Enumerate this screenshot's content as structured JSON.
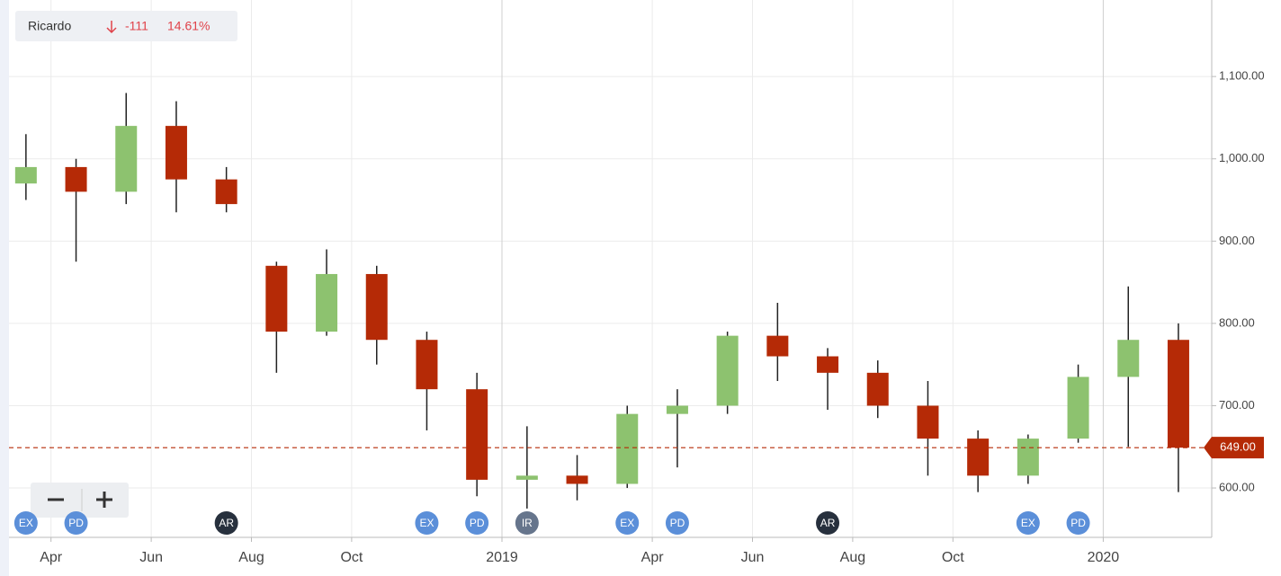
{
  "chart_data": {
    "type": "candlestick",
    "legend": {
      "name": "Ricardo",
      "change": "-111",
      "change_pct": "14.61%"
    },
    "x": [
      "2018-03",
      "2018-04",
      "2018-05",
      "2018-06",
      "2018-07",
      "2018-08",
      "2018-09",
      "2018-10",
      "2018-11",
      "2018-12",
      "2019-01",
      "2019-02",
      "2019-03",
      "2019-04",
      "2019-05",
      "2019-06",
      "2019-07",
      "2019-08",
      "2019-09",
      "2019-10",
      "2019-11",
      "2019-12",
      "2020-01",
      "2020-02"
    ],
    "open": [
      970,
      990,
      960,
      1040,
      975,
      870,
      790,
      860,
      780,
      720,
      610,
      615,
      605,
      690,
      700,
      785,
      760,
      740,
      700,
      660,
      615,
      660,
      735,
      780
    ],
    "high": [
      1030,
      1000,
      1080,
      1070,
      990,
      875,
      890,
      870,
      790,
      740,
      675,
      640,
      700,
      720,
      790,
      825,
      770,
      755,
      730,
      670,
      665,
      750,
      845,
      800
    ],
    "low": [
      950,
      875,
      945,
      935,
      935,
      740,
      785,
      750,
      670,
      590,
      575,
      585,
      600,
      625,
      690,
      730,
      695,
      685,
      615,
      595,
      605,
      655,
      650,
      595
    ],
    "close": [
      990,
      960,
      1040,
      975,
      945,
      790,
      860,
      780,
      720,
      610,
      615,
      605,
      690,
      700,
      785,
      760,
      740,
      700,
      660,
      615,
      660,
      735,
      780,
      649
    ],
    "up_color": "#8dc26f",
    "down_color": "#b52a06",
    "ylim": [
      540,
      1193
    ],
    "yticks": [
      {
        "value": 600,
        "label": "600.00"
      },
      {
        "value": 700,
        "label": "700.00"
      },
      {
        "value": 800,
        "label": "800.00"
      },
      {
        "value": 900,
        "label": "900.00"
      },
      {
        "value": 1000,
        "label": "1,000.00"
      },
      {
        "value": 1100,
        "label": "1,100.00"
      }
    ],
    "xticks": [
      {
        "value": "2018-04",
        "label": "Apr"
      },
      {
        "value": "2018-06",
        "label": "Jun"
      },
      {
        "value": "2018-08",
        "label": "Aug"
      },
      {
        "value": "2018-10",
        "label": "Oct"
      },
      {
        "value": "2019-01",
        "label": "2019"
      },
      {
        "value": "2019-04",
        "label": "Apr"
      },
      {
        "value": "2019-06",
        "label": "Jun"
      },
      {
        "value": "2019-08",
        "label": "Aug"
      },
      {
        "value": "2019-10",
        "label": "Oct"
      },
      {
        "value": "2020-01",
        "label": "2020"
      }
    ],
    "grid": true,
    "last_price": {
      "value": 649,
      "label": "649.00",
      "color": "#b52a06"
    },
    "events": [
      {
        "label": "EX",
        "x": "2018-03",
        "color": "#5b8fd9"
      },
      {
        "label": "PD",
        "x": "2018-04",
        "color": "#5b8fd9"
      },
      {
        "label": "AR",
        "x": "2018-07",
        "color": "#27303d"
      },
      {
        "label": "EX",
        "x": "2018-11",
        "color": "#5b8fd9"
      },
      {
        "label": "PD",
        "x": "2018-12",
        "color": "#5b8fd9"
      },
      {
        "label": "IR",
        "x": "2019-01",
        "color": "#66758c"
      },
      {
        "label": "EX",
        "x": "2019-03",
        "color": "#5b8fd9"
      },
      {
        "label": "PD",
        "x": "2019-04",
        "color": "#5b8fd9"
      },
      {
        "label": "AR",
        "x": "2019-07",
        "color": "#27303d"
      },
      {
        "label": "EX",
        "x": "2019-11",
        "color": "#5b8fd9"
      },
      {
        "label": "PD",
        "x": "2019-12",
        "color": "#5b8fd9"
      }
    ]
  }
}
